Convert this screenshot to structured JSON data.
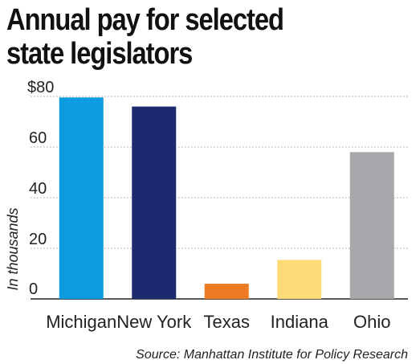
{
  "chart_data": {
    "type": "bar",
    "title_lines": [
      "Annual pay for selected",
      "state legislators"
    ],
    "categories": [
      "Michigan",
      "New York",
      "Texas",
      "Indiana",
      "Ohio"
    ],
    "values": [
      79.6,
      76.0,
      6.0,
      15.4,
      58.0
    ],
    "bar_colors": [
      "#0b9bdf",
      "#1c2a6f",
      "#ee7a23",
      "#fedb76",
      "#a6a8ab"
    ],
    "yticks": [
      "0",
      "20",
      "40",
      "60",
      "$80"
    ],
    "ylim": [
      0,
      80
    ],
    "ylabel": "In thousands",
    "xlabel": "",
    "grid": "dotted horizontal",
    "source": "Source: Manhattan Institute for Policy Research"
  }
}
